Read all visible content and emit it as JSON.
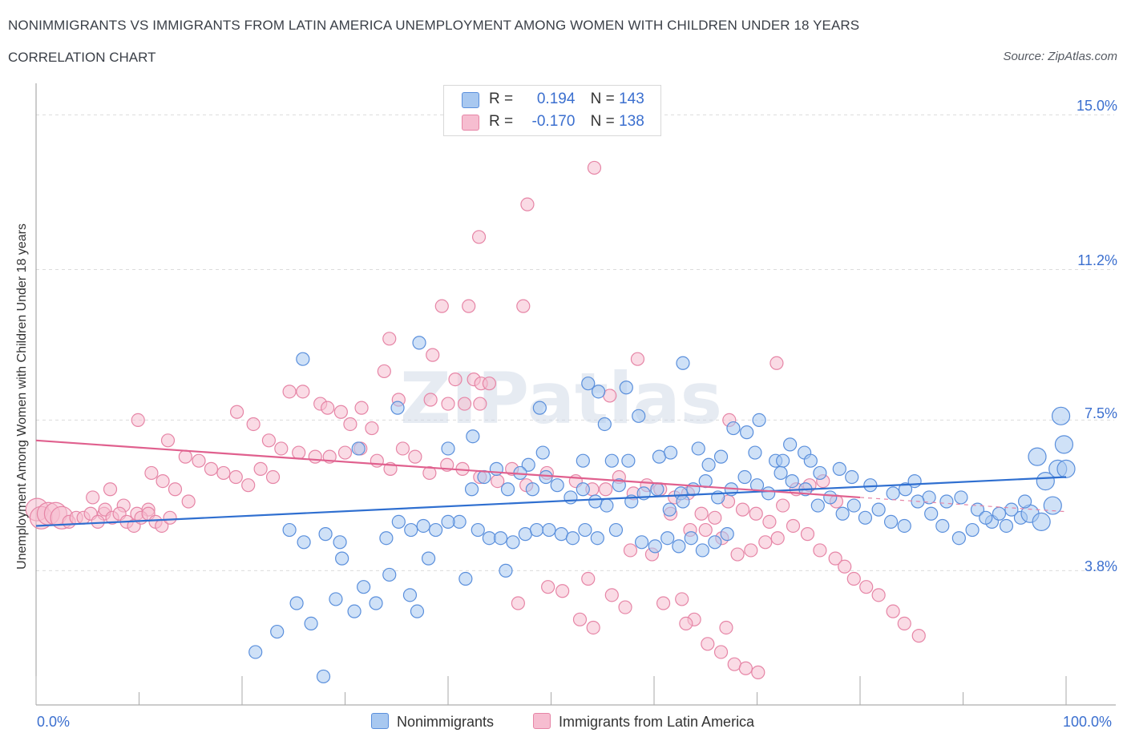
{
  "title": "NONIMMIGRANTS VS IMMIGRANTS FROM LATIN AMERICA UNEMPLOYMENT AMONG WOMEN WITH CHILDREN UNDER 18 YEARS",
  "subtitle": "CORRELATION CHART",
  "source": "Source: ZipAtlas.com",
  "watermark": "ZIPatlas",
  "legend": {
    "nonimmigrants": {
      "r_label": "R =",
      "r_value": "0.194",
      "n_label": "N =",
      "n_value": "143"
    },
    "immigrants": {
      "r_label": "R =",
      "r_value": "-0.170",
      "n_label": "N =",
      "n_value": "138"
    }
  },
  "bottom_legend": {
    "series1": "Nonimmigrants",
    "series2": "Immigrants from Latin America"
  },
  "x_axis": {
    "min_label": "0.0%",
    "max_label": "100.0%"
  },
  "y_axis": {
    "label": "Unemployment Among Women with Children Under 18 years",
    "ticks": [
      "15.0%",
      "11.2%",
      "7.5%",
      "3.8%"
    ]
  },
  "colors": {
    "blue_fill": "#a8c8f0",
    "blue_stroke": "#5a8fdc",
    "blue_line": "#2f6fd0",
    "pink_fill": "#f6bdd0",
    "pink_stroke": "#e685a6",
    "pink_line": "#e0608e",
    "tick_text": "#3b6fcf",
    "grid": "#dcdcdc"
  },
  "chart_data": {
    "type": "scatter",
    "title": "Nonimmigrants vs Immigrants from Latin America Unemployment Among Women with Children Under 18 years",
    "xlabel": "",
    "ylabel": "Unemployment Among Women with Children Under 18 years",
    "xlim": [
      0,
      100
    ],
    "ylim": [
      0.5,
      15.5
    ],
    "yticks": [
      3.8,
      7.5,
      11.2,
      15.0
    ],
    "series": [
      {
        "name": "Nonimmigrants",
        "R": 0.194,
        "N": 143,
        "trend": {
          "x": [
            0,
            100
          ],
          "y": [
            4.9,
            6.1
          ]
        },
        "points": [
          [
            25.9,
            9.0
          ],
          [
            37.2,
            9.4
          ],
          [
            53.6,
            8.4
          ],
          [
            54.6,
            8.2
          ],
          [
            57.3,
            8.3
          ],
          [
            62.8,
            8.9
          ],
          [
            48.9,
            7.8
          ],
          [
            58.5,
            7.6
          ],
          [
            55.2,
            7.4
          ],
          [
            35.1,
            7.8
          ],
          [
            42.4,
            7.1
          ],
          [
            31.3,
            6.8
          ],
          [
            40.0,
            6.8
          ],
          [
            49.2,
            6.7
          ],
          [
            47.8,
            6.4
          ],
          [
            53.1,
            6.5
          ],
          [
            55.9,
            6.5
          ],
          [
            57.5,
            6.5
          ],
          [
            60.5,
            6.6
          ],
          [
            61.6,
            6.7
          ],
          [
            64.3,
            6.8
          ],
          [
            66.5,
            6.6
          ],
          [
            65.3,
            6.4
          ],
          [
            69.8,
            6.7
          ],
          [
            71.8,
            6.5
          ],
          [
            73.2,
            6.9
          ],
          [
            74.6,
            6.7
          ],
          [
            75.2,
            6.5
          ],
          [
            78.0,
            6.3
          ],
          [
            69.0,
            7.2
          ],
          [
            67.7,
            7.3
          ],
          [
            70.2,
            7.5
          ],
          [
            72.5,
            6.5
          ],
          [
            76.1,
            6.2
          ],
          [
            79.2,
            6.1
          ],
          [
            81.0,
            5.9
          ],
          [
            83.2,
            5.7
          ],
          [
            84.4,
            5.8
          ],
          [
            85.3,
            6.0
          ],
          [
            86.7,
            5.6
          ],
          [
            88.4,
            5.5
          ],
          [
            89.8,
            5.6
          ],
          [
            91.4,
            5.3
          ],
          [
            92.8,
            5.0
          ],
          [
            94.2,
            4.9
          ],
          [
            95.6,
            5.1
          ],
          [
            96.5,
            5.2
          ],
          [
            97.6,
            5.0
          ],
          [
            98.7,
            5.4
          ],
          [
            99.2,
            6.3
          ],
          [
            100.0,
            6.3
          ],
          [
            98.0,
            6.0
          ],
          [
            99.5,
            7.6
          ],
          [
            99.8,
            6.9
          ],
          [
            97.2,
            6.6
          ],
          [
            96.0,
            5.5
          ],
          [
            94.7,
            5.3
          ],
          [
            93.5,
            5.2
          ],
          [
            92.2,
            5.1
          ],
          [
            90.9,
            4.8
          ],
          [
            89.6,
            4.6
          ],
          [
            88.0,
            4.9
          ],
          [
            86.9,
            5.2
          ],
          [
            85.6,
            5.5
          ],
          [
            84.3,
            4.9
          ],
          [
            83.0,
            5.0
          ],
          [
            81.8,
            5.3
          ],
          [
            80.5,
            5.1
          ],
          [
            79.4,
            5.4
          ],
          [
            78.3,
            5.2
          ],
          [
            77.1,
            5.6
          ],
          [
            75.9,
            5.4
          ],
          [
            74.7,
            5.8
          ],
          [
            73.4,
            6.0
          ],
          [
            72.3,
            6.2
          ],
          [
            71.1,
            5.7
          ],
          [
            70.0,
            5.9
          ],
          [
            68.8,
            6.1
          ],
          [
            67.5,
            5.8
          ],
          [
            66.2,
            5.6
          ],
          [
            65.0,
            6.0
          ],
          [
            63.8,
            5.8
          ],
          [
            62.6,
            5.7
          ],
          [
            61.5,
            5.3
          ],
          [
            60.3,
            5.8
          ],
          [
            59.0,
            5.7
          ],
          [
            57.8,
            5.5
          ],
          [
            56.6,
            5.9
          ],
          [
            55.4,
            5.4
          ],
          [
            54.3,
            5.5
          ],
          [
            53.1,
            5.8
          ],
          [
            51.9,
            5.6
          ],
          [
            50.6,
            5.9
          ],
          [
            49.5,
            6.1
          ],
          [
            48.2,
            5.8
          ],
          [
            47.0,
            6.2
          ],
          [
            45.8,
            5.8
          ],
          [
            44.7,
            6.3
          ],
          [
            43.5,
            6.1
          ],
          [
            42.3,
            5.8
          ],
          [
            41.1,
            5.0
          ],
          [
            40.0,
            5.0
          ],
          [
            38.8,
            4.8
          ],
          [
            37.6,
            4.9
          ],
          [
            36.4,
            4.8
          ],
          [
            35.2,
            5.0
          ],
          [
            34.0,
            4.6
          ],
          [
            42.9,
            4.8
          ],
          [
            44.0,
            4.6
          ],
          [
            45.1,
            4.6
          ],
          [
            46.3,
            4.5
          ],
          [
            47.5,
            4.7
          ],
          [
            48.6,
            4.8
          ],
          [
            49.8,
            4.8
          ],
          [
            51.0,
            4.7
          ],
          [
            52.1,
            4.6
          ],
          [
            53.3,
            4.8
          ],
          [
            54.5,
            4.6
          ],
          [
            56.3,
            4.8
          ],
          [
            58.8,
            4.5
          ],
          [
            60.1,
            4.4
          ],
          [
            61.3,
            4.6
          ],
          [
            62.4,
            4.4
          ],
          [
            63.6,
            4.6
          ],
          [
            64.7,
            4.3
          ],
          [
            65.9,
            4.5
          ],
          [
            67.1,
            4.7
          ],
          [
            29.7,
            4.1
          ],
          [
            28.1,
            4.7
          ],
          [
            26.0,
            4.5
          ],
          [
            24.6,
            4.8
          ],
          [
            25.3,
            3.0
          ],
          [
            29.1,
            3.1
          ],
          [
            30.9,
            2.8
          ],
          [
            31.8,
            3.4
          ],
          [
            33.0,
            3.0
          ],
          [
            34.3,
            3.7
          ],
          [
            36.3,
            3.2
          ],
          [
            37.0,
            2.8
          ],
          [
            38.1,
            4.1
          ],
          [
            41.7,
            3.6
          ],
          [
            45.6,
            3.8
          ],
          [
            21.3,
            1.8
          ],
          [
            27.9,
            1.2
          ],
          [
            23.4,
            2.3
          ],
          [
            26.7,
            2.5
          ],
          [
            29.5,
            4.5
          ],
          [
            62.8,
            5.5
          ]
        ]
      },
      {
        "name": "Immigrants from Latin America",
        "R": -0.17,
        "N": 138,
        "trend": {
          "x": [
            0,
            80
          ],
          "y": [
            7.0,
            5.6
          ]
        },
        "points": [
          [
            54.2,
            13.7
          ],
          [
            47.7,
            12.8
          ],
          [
            43.0,
            12.0
          ],
          [
            39.4,
            10.3
          ],
          [
            42.0,
            10.3
          ],
          [
            47.3,
            10.3
          ],
          [
            34.3,
            9.5
          ],
          [
            38.5,
            9.1
          ],
          [
            58.4,
            9.0
          ],
          [
            71.9,
            8.9
          ],
          [
            33.8,
            8.7
          ],
          [
            40.7,
            8.5
          ],
          [
            42.5,
            8.5
          ],
          [
            43.2,
            8.4
          ],
          [
            44.0,
            8.4
          ],
          [
            35.2,
            8.0
          ],
          [
            38.3,
            8.0
          ],
          [
            40.0,
            7.9
          ],
          [
            41.6,
            7.9
          ],
          [
            43.1,
            7.9
          ],
          [
            55.7,
            8.1
          ],
          [
            67.3,
            7.5
          ],
          [
            24.6,
            8.2
          ],
          [
            25.9,
            8.2
          ],
          [
            27.6,
            7.9
          ],
          [
            28.3,
            7.8
          ],
          [
            29.6,
            7.7
          ],
          [
            30.5,
            7.4
          ],
          [
            31.6,
            7.8
          ],
          [
            32.6,
            7.3
          ],
          [
            19.5,
            7.7
          ],
          [
            21.1,
            7.4
          ],
          [
            22.6,
            7.0
          ],
          [
            23.8,
            6.8
          ],
          [
            25.5,
            6.7
          ],
          [
            27.1,
            6.6
          ],
          [
            28.5,
            6.6
          ],
          [
            30.0,
            6.7
          ],
          [
            31.5,
            6.8
          ],
          [
            33.1,
            6.5
          ],
          [
            34.4,
            6.3
          ],
          [
            35.6,
            6.8
          ],
          [
            36.8,
            6.6
          ],
          [
            38.2,
            6.2
          ],
          [
            39.9,
            6.4
          ],
          [
            41.4,
            6.3
          ],
          [
            43.1,
            6.1
          ],
          [
            44.8,
            6.0
          ],
          [
            46.2,
            6.3
          ],
          [
            47.6,
            5.9
          ],
          [
            9.9,
            7.5
          ],
          [
            12.8,
            7.0
          ],
          [
            14.5,
            6.6
          ],
          [
            15.8,
            6.5
          ],
          [
            17.0,
            6.3
          ],
          [
            18.2,
            6.2
          ],
          [
            19.4,
            6.1
          ],
          [
            20.6,
            5.9
          ],
          [
            21.8,
            6.3
          ],
          [
            23.0,
            6.1
          ],
          [
            11.2,
            6.2
          ],
          [
            12.3,
            6.0
          ],
          [
            13.5,
            5.8
          ],
          [
            14.8,
            5.5
          ],
          [
            7.2,
            5.8
          ],
          [
            8.5,
            5.4
          ],
          [
            9.8,
            5.2
          ],
          [
            10.9,
            5.3
          ],
          [
            5.5,
            5.6
          ],
          [
            6.6,
            5.2
          ],
          [
            0.1,
            5.3
          ],
          [
            0.5,
            5.1
          ],
          [
            1.2,
            5.2
          ],
          [
            1.9,
            5.2
          ],
          [
            2.5,
            5.1
          ],
          [
            3.2,
            5.0
          ],
          [
            3.9,
            5.1
          ],
          [
            4.6,
            5.1
          ],
          [
            5.3,
            5.2
          ],
          [
            6.0,
            5.0
          ],
          [
            6.7,
            5.3
          ],
          [
            7.4,
            5.1
          ],
          [
            8.1,
            5.2
          ],
          [
            8.8,
            5.0
          ],
          [
            9.5,
            4.9
          ],
          [
            10.2,
            5.1
          ],
          [
            10.9,
            5.2
          ],
          [
            11.6,
            5.0
          ],
          [
            12.2,
            4.9
          ],
          [
            13.0,
            5.1
          ],
          [
            49.6,
            6.2
          ],
          [
            52.4,
            6.0
          ],
          [
            54.0,
            5.8
          ],
          [
            55.3,
            5.8
          ],
          [
            56.6,
            6.1
          ],
          [
            58.0,
            5.7
          ],
          [
            59.3,
            5.9
          ],
          [
            60.6,
            5.8
          ],
          [
            62.0,
            5.6
          ],
          [
            63.3,
            5.7
          ],
          [
            64.6,
            5.2
          ],
          [
            65.9,
            5.1
          ],
          [
            67.2,
            5.5
          ],
          [
            68.6,
            5.3
          ],
          [
            69.9,
            5.2
          ],
          [
            71.2,
            5.0
          ],
          [
            72.5,
            5.4
          ],
          [
            73.8,
            5.8
          ],
          [
            75.1,
            5.9
          ],
          [
            76.4,
            6.0
          ],
          [
            77.7,
            5.5
          ],
          [
            61.6,
            5.2
          ],
          [
            63.5,
            4.8
          ],
          [
            65.0,
            4.8
          ],
          [
            66.6,
            4.6
          ],
          [
            68.1,
            4.2
          ],
          [
            69.4,
            4.3
          ],
          [
            70.8,
            4.5
          ],
          [
            72.0,
            4.6
          ],
          [
            73.5,
            4.9
          ],
          [
            74.9,
            4.7
          ],
          [
            76.1,
            4.3
          ],
          [
            77.6,
            4.1
          ],
          [
            78.5,
            3.9
          ],
          [
            79.4,
            3.6
          ],
          [
            80.6,
            3.4
          ],
          [
            81.8,
            3.2
          ],
          [
            83.2,
            2.8
          ],
          [
            84.3,
            2.5
          ],
          [
            85.7,
            2.2
          ],
          [
            57.7,
            4.3
          ],
          [
            59.8,
            4.2
          ],
          [
            60.9,
            3.0
          ],
          [
            62.7,
            3.1
          ],
          [
            63.9,
            2.6
          ],
          [
            65.2,
            2.0
          ],
          [
            66.5,
            1.8
          ],
          [
            67.8,
            1.5
          ],
          [
            68.9,
            1.4
          ],
          [
            70.1,
            1.3
          ],
          [
            52.8,
            2.6
          ],
          [
            54.1,
            2.4
          ],
          [
            49.7,
            3.4
          ],
          [
            46.8,
            3.0
          ],
          [
            51.1,
            3.3
          ],
          [
            53.6,
            3.6
          ],
          [
            55.9,
            3.2
          ],
          [
            57.2,
            2.9
          ],
          [
            63.1,
            2.5
          ],
          [
            67.0,
            2.4
          ]
        ]
      }
    ]
  }
}
